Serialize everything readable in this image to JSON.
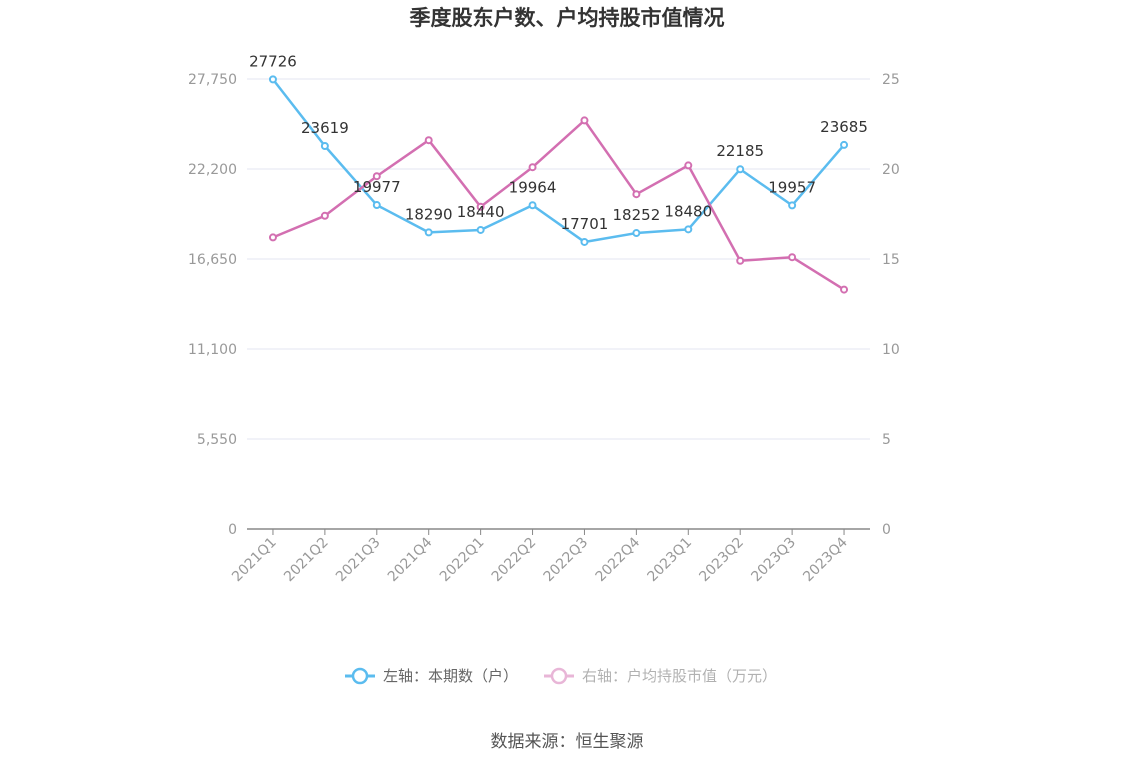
{
  "chart_data": {
    "type": "line",
    "title": "季度股东户数、户均持股市值情况",
    "categories": [
      "2021Q1",
      "2021Q2",
      "2021Q3",
      "2021Q4",
      "2022Q1",
      "2022Q2",
      "2022Q3",
      "2022Q4",
      "2023Q1",
      "2023Q2",
      "2023Q3",
      "2023Q4"
    ],
    "series": [
      {
        "name": "左轴：本期数（户）",
        "axis": "left",
        "color": "#5bbcef",
        "values": [
          27726,
          23619,
          19977,
          18290,
          18440,
          19964,
          17701,
          18252,
          18480,
          22185,
          19957,
          23685
        ],
        "labels": [
          "27726",
          "23619",
          "19977",
          "18290",
          "18440",
          "19964",
          "17701",
          "18252",
          "18480",
          "22185",
          "19957",
          "23685"
        ]
      },
      {
        "name": "右轴：户均持股市值（万元）",
        "axis": "right",
        "color": "#d36fb1",
        "values": [
          16.2,
          17.4,
          19.6,
          21.6,
          17.9,
          20.1,
          22.7,
          18.6,
          20.2,
          14.9,
          15.1,
          13.3
        ]
      }
    ],
    "y_left": {
      "ylim": [
        0,
        27750
      ],
      "ticks": [
        "0",
        "5,550",
        "11,100",
        "16,650",
        "22,200",
        "27,750"
      ]
    },
    "y_right": {
      "ylim": [
        0,
        25
      ],
      "ticks": [
        "0",
        "5",
        "10",
        "15",
        "20",
        "25"
      ]
    },
    "grid": true,
    "legend": "bottom-center"
  },
  "source": "数据来源：恒生聚源"
}
